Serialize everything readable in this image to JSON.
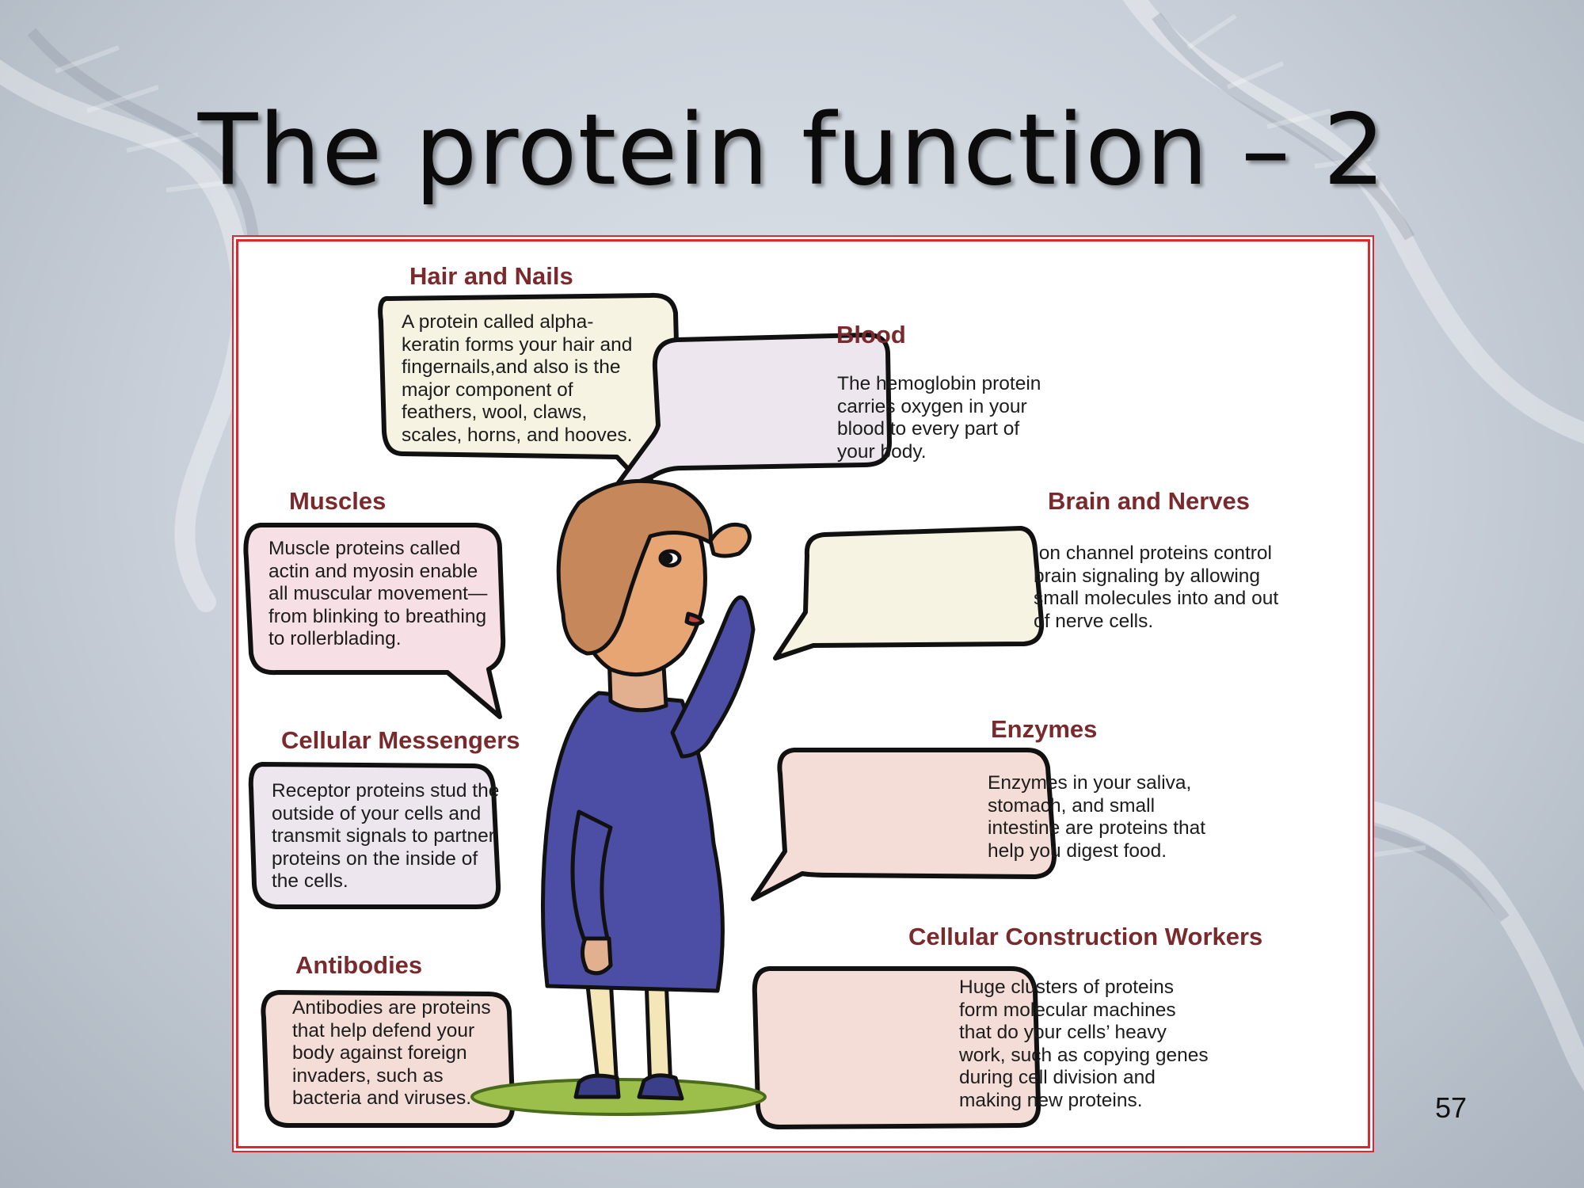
{
  "slide": {
    "title": "The protein function – 2",
    "page_number": "57",
    "colors": {
      "frame": "#e0262e",
      "heading": "#7a2a2c",
      "bubble_cream": "#f6f3e2",
      "bubble_pink": "#f7dfe6",
      "bubble_lavender": "#ede6ee",
      "bubble_peach": "#f4ddd6",
      "shirt": "#4c4ea5",
      "hair": "#c6875a"
    }
  },
  "diagram": {
    "figure_icon": "person-saluting-illustration",
    "callouts": [
      {
        "key": "hair_nails",
        "heading": "Hair and Nails",
        "text": "A protein called alpha-\nkeratin forms your hair and\nfingernails,and also is the\nmajor component of\nfeathers, wool, claws,\nscales, horns, and hooves."
      },
      {
        "key": "blood",
        "heading": "Blood",
        "text": "The hemoglobin protein\ncarries oxygen in your\nblood to every part of\nyour body."
      },
      {
        "key": "muscles",
        "heading": "Muscles",
        "text": "Muscle proteins called\nactin and myosin enable\nall muscular movement—\nfrom blinking to breathing\nto rollerblading."
      },
      {
        "key": "brain_nerves",
        "heading": "Brain and Nerves",
        "text": "Ion channel proteins control\nbrain signaling by allowing\nsmall molecules into and out\nof nerve cells."
      },
      {
        "key": "cellular_messengers",
        "heading": "Cellular Messengers",
        "text": "Receptor proteins stud the\noutside of your cells and\ntransmit signals to partner\nproteins on the inside of\nthe cells."
      },
      {
        "key": "enzymes",
        "heading": "Enzymes",
        "text": "Enzymes in your saliva,\nstomach, and small\nintestine are proteins that\nhelp you  digest food."
      },
      {
        "key": "antibodies",
        "heading": "Antibodies",
        "text": "Antibodies are proteins\nthat help defend your\nbody against foreign\ninvaders, such as\nbacteria and viruses."
      },
      {
        "key": "construction",
        "heading": "Cellular Construction Workers",
        "text": "Huge clusters of proteins\nform molecular machines\nthat do your cells’ heavy\nwork, such as copying genes\nduring cell division and\nmaking new proteins."
      }
    ]
  }
}
